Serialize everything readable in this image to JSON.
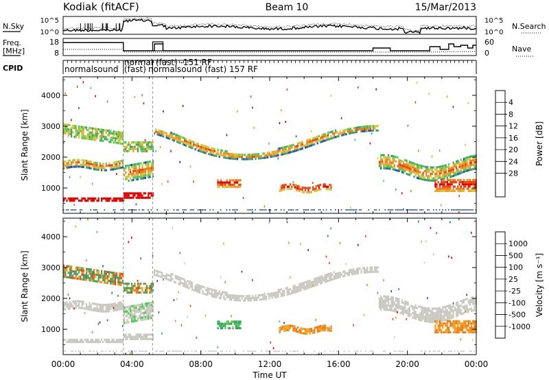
{
  "header": {
    "station": "Kodiak (fitACF)",
    "beam": "Beam 10",
    "date": "15/Mar/2013"
  },
  "labels": {
    "nsky": "N.Sky",
    "nsearch": "N.Search",
    "freq": "Freq.",
    "mhz": "[MHz]",
    "nave": "Nave",
    "cpid": "CPID",
    "noise_top_left": "10^5",
    "noise_bot_left": "10^0",
    "noise_top_right": "10^5",
    "noise_bot_right": "10^0",
    "freq_top": "18",
    "freq_bot": "8",
    "nave_top": "60",
    "nave_bot": "0"
  },
  "cpid": {
    "seg1": "normalsound",
    "seg2a": "normal (fast) -151 RF",
    "seg2b": "(fast)",
    "seg3": "normalsound (fast) 157 RF"
  },
  "chart_data": [
    {
      "type": "heatmap",
      "name": "power",
      "ylabel": "Slant Range [km]",
      "ylim": [
        180,
        4600
      ],
      "yticks": [
        "1000",
        "2000",
        "3000",
        "4000"
      ],
      "xlabel": "Time UT",
      "xticks": [
        "00:00",
        "04:00",
        "08:00",
        "12:00",
        "16:00",
        "20:00",
        "00:00"
      ],
      "colorbar_label": "Power [dB]",
      "colorbar_ticks": [
        "4",
        "8",
        "12",
        "16",
        "20",
        "24",
        "28"
      ],
      "colors": [
        "#1c1cf0",
        "#1e50b4",
        "#3c9c70",
        "#50c850",
        "#c8c83c",
        "#f0a020",
        "#f07810",
        "#e84010",
        "#e00000"
      ]
    },
    {
      "type": "heatmap",
      "name": "velocity",
      "ylabel": "Slant Range [km]",
      "ylim": [
        180,
        4600
      ],
      "yticks": [
        "1000",
        "2000",
        "3000",
        "4000"
      ],
      "xlabel": "Time UT",
      "xticks": [
        "00:00",
        "04:00",
        "08:00",
        "12:00",
        "16:00",
        "20:00",
        "00:00"
      ],
      "colorbar_label": "Velocity [m s⁻¹]",
      "colorbar_ticks": [
        "1000",
        "500",
        "100",
        "25",
        "-25",
        "-100",
        "-500",
        "-1000"
      ],
      "colors": [
        "#1c3cc8",
        "#1e6ea0",
        "#32a064",
        "#50c850",
        "#c8c8c0",
        "#f0a020",
        "#f07810",
        "#e84010",
        "#e00000"
      ]
    }
  ]
}
